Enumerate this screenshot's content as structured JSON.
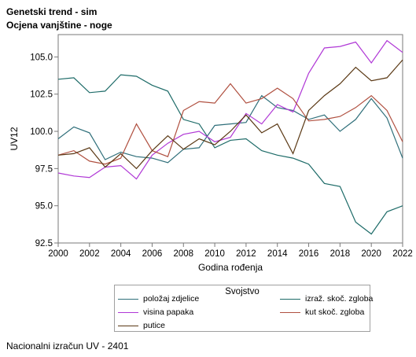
{
  "header": {
    "title": "Genetski trend - sim",
    "subtitle": "Ocjena vanjštine - noge"
  },
  "footer": {
    "text": "Nacionalni izračun UV - 2401"
  },
  "legend": {
    "title": "Svojstvo"
  },
  "chart_data": {
    "type": "line",
    "xlabel": "Godina rođenja",
    "ylabel": "UV12",
    "x": [
      2000,
      2001,
      2002,
      2003,
      2004,
      2005,
      2006,
      2007,
      2008,
      2009,
      2010,
      2011,
      2012,
      2013,
      2014,
      2015,
      2016,
      2017,
      2018,
      2019,
      2020,
      2021,
      2022
    ],
    "xlim": [
      2000,
      2022
    ],
    "ylim": [
      92.5,
      106.5
    ],
    "xticks": [
      "2000",
      "2002",
      "2004",
      "2006",
      "2008",
      "2010",
      "2012",
      "2014",
      "2016",
      "2018",
      "2020",
      "2022"
    ],
    "yticks": [
      "92.5",
      "95.0",
      "97.5",
      "100.0",
      "102.5",
      "105.0"
    ],
    "grid": false,
    "legend_position": "bottom",
    "series": [
      {
        "name": "položaj zdjelice",
        "color": "#2f6f7a",
        "values": [
          99.5,
          100.3,
          99.9,
          98.1,
          98.6,
          98.3,
          98.2,
          97.9,
          98.8,
          98.9,
          100.4,
          100.5,
          100.6,
          102.4,
          101.6,
          101.4,
          100.8,
          101.1,
          100.0,
          100.8,
          102.2,
          100.9,
          98.2
        ]
      },
      {
        "name": "izraž. skoč. zgloba",
        "color": "#1d6b68",
        "values": [
          103.5,
          103.6,
          102.6,
          102.7,
          103.8,
          103.7,
          103.1,
          102.7,
          100.8,
          100.5,
          98.9,
          99.4,
          99.5,
          98.7,
          98.4,
          98.2,
          97.8,
          96.5,
          96.3,
          93.9,
          93.1,
          94.6,
          95.0
        ]
      },
      {
        "name": "visina papaka",
        "color": "#b038d6",
        "values": [
          97.2,
          97.0,
          96.9,
          97.6,
          97.7,
          96.8,
          98.4,
          99.2,
          99.8,
          100.0,
          99.3,
          99.6,
          101.2,
          100.5,
          101.8,
          101.3,
          103.9,
          105.6,
          105.7,
          106.0,
          104.6,
          106.1,
          105.3
        ]
      },
      {
        "name": "kut skoč. zgloba",
        "color": "#b05040",
        "values": [
          98.4,
          98.7,
          98.0,
          97.8,
          98.2,
          100.5,
          98.7,
          98.3,
          101.4,
          102.0,
          101.9,
          103.2,
          101.9,
          102.2,
          102.9,
          102.2,
          100.7,
          100.8,
          101.0,
          101.6,
          102.4,
          101.4,
          99.3
        ]
      },
      {
        "name": "putice",
        "color": "#5a3814",
        "values": [
          98.4,
          98.5,
          98.9,
          97.6,
          98.5,
          97.5,
          98.7,
          99.7,
          98.8,
          99.5,
          99.1,
          100.0,
          101.1,
          99.9,
          100.5,
          98.5,
          101.4,
          102.4,
          103.2,
          104.3,
          103.4,
          103.6,
          104.8
        ]
      }
    ]
  }
}
